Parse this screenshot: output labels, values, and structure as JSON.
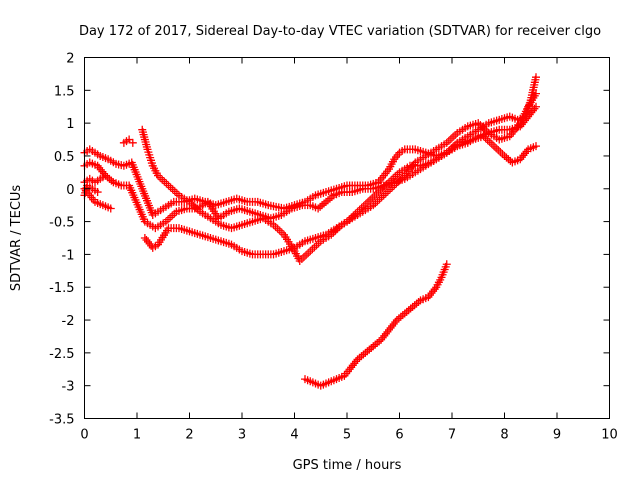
{
  "chart_data": {
    "type": "scatter",
    "title": "Day 172 of 2017, Sidereal Day-to-day VTEC variation (SDTVAR) for receiver clgo",
    "xlabel": "GPS time / hours",
    "ylabel": "SDTVAR / TECUs",
    "xlim": [
      0,
      10
    ],
    "ylim": [
      -3.5,
      2
    ],
    "xticks": [
      "0",
      "1",
      "2",
      "3",
      "4",
      "5",
      "6",
      "7",
      "8",
      "9",
      "10"
    ],
    "yticks": [
      "2",
      "1.5",
      "1",
      "0.5",
      "0",
      "-0.5",
      "-1",
      "-1.5",
      "-2",
      "-2.5",
      "-3",
      "-3.5"
    ],
    "grid": false,
    "marker": "+",
    "color": "#ff0000",
    "series": [
      {
        "name": "track-1",
        "points": [
          [
            0.0,
            0.55
          ],
          [
            0.1,
            0.6
          ],
          [
            0.2,
            0.55
          ],
          [
            0.3,
            0.5
          ],
          [
            0.45,
            0.45
          ],
          [
            0.6,
            0.38
          ],
          [
            0.75,
            0.35
          ],
          [
            0.9,
            0.4
          ],
          [
            1.3,
            -0.4
          ],
          [
            1.5,
            -0.3
          ],
          [
            1.7,
            -0.2
          ],
          [
            1.9,
            -0.2
          ],
          [
            2.1,
            -0.15
          ],
          [
            2.3,
            -0.2
          ],
          [
            2.5,
            -0.25
          ],
          [
            2.7,
            -0.2
          ],
          [
            2.9,
            -0.15
          ],
          [
            3.1,
            -0.2
          ],
          [
            3.3,
            -0.2
          ],
          [
            3.5,
            -0.25
          ],
          [
            3.8,
            -0.3
          ],
          [
            4.0,
            -0.25
          ],
          [
            4.2,
            -0.2
          ],
          [
            4.4,
            -0.1
          ],
          [
            4.6,
            -0.05
          ],
          [
            4.8,
            0.0
          ],
          [
            5.0,
            0.05
          ],
          [
            5.2,
            0.05
          ],
          [
            5.4,
            0.05
          ],
          [
            5.6,
            0.1
          ],
          [
            5.8,
            0.3
          ],
          [
            5.9,
            0.45
          ],
          [
            6.0,
            0.55
          ],
          [
            6.1,
            0.6
          ],
          [
            6.3,
            0.6
          ],
          [
            6.5,
            0.55
          ],
          [
            6.7,
            0.5
          ],
          [
            6.9,
            0.55
          ],
          [
            7.1,
            0.7
          ],
          [
            7.3,
            0.8
          ],
          [
            7.5,
            0.9
          ],
          [
            7.7,
            1.0
          ],
          [
            7.9,
            1.05
          ],
          [
            8.1,
            1.1
          ],
          [
            8.25,
            1.05
          ],
          [
            8.4,
            1.1
          ],
          [
            8.5,
            1.35
          ],
          [
            8.6,
            1.7
          ]
        ]
      },
      {
        "name": "track-2",
        "points": [
          [
            0.0,
            0.35
          ],
          [
            0.1,
            0.4
          ],
          [
            0.25,
            0.35
          ],
          [
            0.4,
            0.2
          ],
          [
            0.55,
            0.1
          ],
          [
            0.7,
            0.05
          ],
          [
            0.85,
            0.05
          ],
          [
            1.15,
            -0.5
          ],
          [
            1.35,
            -0.6
          ],
          [
            1.55,
            -0.5
          ],
          [
            1.75,
            -0.35
          ],
          [
            1.95,
            -0.3
          ],
          [
            2.15,
            -0.3
          ],
          [
            2.35,
            -0.2
          ],
          [
            2.55,
            -0.45
          ],
          [
            2.75,
            -0.35
          ],
          [
            2.95,
            -0.3
          ],
          [
            3.15,
            -0.35
          ],
          [
            3.35,
            -0.4
          ],
          [
            3.55,
            -0.45
          ],
          [
            3.75,
            -0.4
          ],
          [
            3.95,
            -0.3
          ],
          [
            4.15,
            -0.25
          ],
          [
            4.3,
            -0.25
          ],
          [
            4.45,
            -0.3
          ],
          [
            4.6,
            -0.2
          ],
          [
            4.75,
            -0.1
          ],
          [
            4.9,
            -0.05
          ],
          [
            5.1,
            -0.05
          ],
          [
            5.3,
            0.0
          ],
          [
            5.5,
            0.0
          ],
          [
            5.7,
            0.05
          ],
          [
            5.9,
            0.1
          ],
          [
            6.1,
            0.15
          ],
          [
            6.3,
            0.25
          ],
          [
            6.5,
            0.35
          ],
          [
            6.7,
            0.45
          ],
          [
            6.9,
            0.55
          ],
          [
            7.1,
            0.65
          ],
          [
            7.3,
            0.7
          ],
          [
            7.5,
            0.8
          ],
          [
            7.7,
            0.85
          ],
          [
            7.9,
            0.9
          ],
          [
            8.1,
            0.9
          ],
          [
            8.3,
            0.95
          ],
          [
            8.45,
            1.1
          ],
          [
            8.6,
            1.25
          ]
        ]
      },
      {
        "name": "track-3",
        "points": [
          [
            0.0,
            0.1
          ],
          [
            0.1,
            0.15
          ],
          [
            0.2,
            0.1
          ],
          [
            0.3,
            0.15
          ],
          [
            0.4,
            0.2
          ],
          [
            1.15,
            -0.75
          ],
          [
            1.3,
            -0.9
          ],
          [
            1.4,
            -0.85
          ],
          [
            1.6,
            -0.6
          ],
          [
            1.8,
            -0.6
          ],
          [
            2.0,
            -0.65
          ],
          [
            2.2,
            -0.7
          ],
          [
            2.4,
            -0.75
          ],
          [
            2.6,
            -0.8
          ],
          [
            2.8,
            -0.85
          ],
          [
            3.0,
            -0.95
          ],
          [
            3.2,
            -1.0
          ],
          [
            3.4,
            -1.0
          ],
          [
            3.6,
            -1.0
          ],
          [
            3.8,
            -0.95
          ],
          [
            4.0,
            -0.9
          ],
          [
            4.2,
            -0.8
          ],
          [
            4.4,
            -0.75
          ],
          [
            4.6,
            -0.7
          ],
          [
            4.8,
            -0.6
          ],
          [
            5.0,
            -0.5
          ],
          [
            5.2,
            -0.35
          ],
          [
            5.4,
            -0.2
          ],
          [
            5.6,
            -0.05
          ],
          [
            5.8,
            0.1
          ],
          [
            6.0,
            0.25
          ],
          [
            6.2,
            0.35
          ],
          [
            6.4,
            0.35
          ],
          [
            6.6,
            0.4
          ],
          [
            6.8,
            0.5
          ],
          [
            7.0,
            0.6
          ],
          [
            7.2,
            0.7
          ],
          [
            7.4,
            0.75
          ],
          [
            7.6,
            0.8
          ],
          [
            7.8,
            0.65
          ],
          [
            8.0,
            0.5
          ],
          [
            8.15,
            0.4
          ],
          [
            8.3,
            0.45
          ],
          [
            8.45,
            0.6
          ],
          [
            8.6,
            0.65
          ]
        ]
      },
      {
        "name": "track-4",
        "points": [
          [
            0.0,
            0.0
          ],
          [
            0.1,
            -0.1
          ],
          [
            0.2,
            -0.2
          ],
          [
            0.35,
            -0.25
          ],
          [
            0.5,
            -0.3
          ],
          [
            1.1,
            0.9
          ],
          [
            1.2,
            0.6
          ],
          [
            1.3,
            0.35
          ],
          [
            1.4,
            0.2
          ],
          [
            1.6,
            0.05
          ],
          [
            1.8,
            -0.1
          ],
          [
            2.0,
            -0.2
          ],
          [
            2.2,
            -0.35
          ],
          [
            2.4,
            -0.45
          ],
          [
            2.6,
            -0.55
          ],
          [
            2.8,
            -0.6
          ],
          [
            3.0,
            -0.55
          ],
          [
            3.2,
            -0.5
          ],
          [
            3.4,
            -0.45
          ],
          [
            3.6,
            -0.55
          ],
          [
            3.8,
            -0.7
          ],
          [
            4.0,
            -0.95
          ],
          [
            4.1,
            -1.1
          ],
          [
            4.3,
            -0.95
          ],
          [
            4.5,
            -0.8
          ],
          [
            4.7,
            -0.7
          ],
          [
            4.9,
            -0.55
          ],
          [
            5.1,
            -0.45
          ],
          [
            5.3,
            -0.35
          ],
          [
            5.5,
            -0.25
          ],
          [
            5.7,
            -0.1
          ],
          [
            5.9,
            0.05
          ],
          [
            6.1,
            0.2
          ],
          [
            6.3,
            0.4
          ],
          [
            6.5,
            0.5
          ],
          [
            6.7,
            0.6
          ],
          [
            6.9,
            0.7
          ],
          [
            7.1,
            0.85
          ],
          [
            7.3,
            0.95
          ],
          [
            7.5,
            1.0
          ],
          [
            7.7,
            0.85
          ],
          [
            7.9,
            0.75
          ],
          [
            8.1,
            0.8
          ],
          [
            8.3,
            1.0
          ],
          [
            8.45,
            1.25
          ],
          [
            8.6,
            1.45
          ]
        ]
      },
      {
        "name": "track-5",
        "points": [
          [
            0.0,
            -0.1
          ],
          [
            0.05,
            0.05
          ],
          [
            0.15,
            0.0
          ],
          [
            0.25,
            -0.05
          ]
        ]
      },
      {
        "name": "track-6",
        "points": [
          [
            0.75,
            0.7
          ],
          [
            0.85,
            0.75
          ],
          [
            0.92,
            0.7
          ]
        ]
      },
      {
        "name": "track-7",
        "points": [
          [
            4.2,
            -2.9
          ],
          [
            4.35,
            -2.95
          ],
          [
            4.5,
            -3.0
          ],
          [
            4.65,
            -2.95
          ],
          [
            4.8,
            -2.9
          ],
          [
            4.95,
            -2.85
          ],
          [
            5.05,
            -2.75
          ],
          [
            5.2,
            -2.6
          ],
          [
            5.35,
            -2.5
          ],
          [
            5.5,
            -2.4
          ],
          [
            5.65,
            -2.3
          ],
          [
            5.8,
            -2.15
          ],
          [
            5.95,
            -2.0
          ],
          [
            6.1,
            -1.9
          ],
          [
            6.25,
            -1.8
          ],
          [
            6.4,
            -1.7
          ],
          [
            6.55,
            -1.65
          ],
          [
            6.7,
            -1.5
          ],
          [
            6.8,
            -1.35
          ],
          [
            6.9,
            -1.15
          ]
        ]
      }
    ]
  }
}
